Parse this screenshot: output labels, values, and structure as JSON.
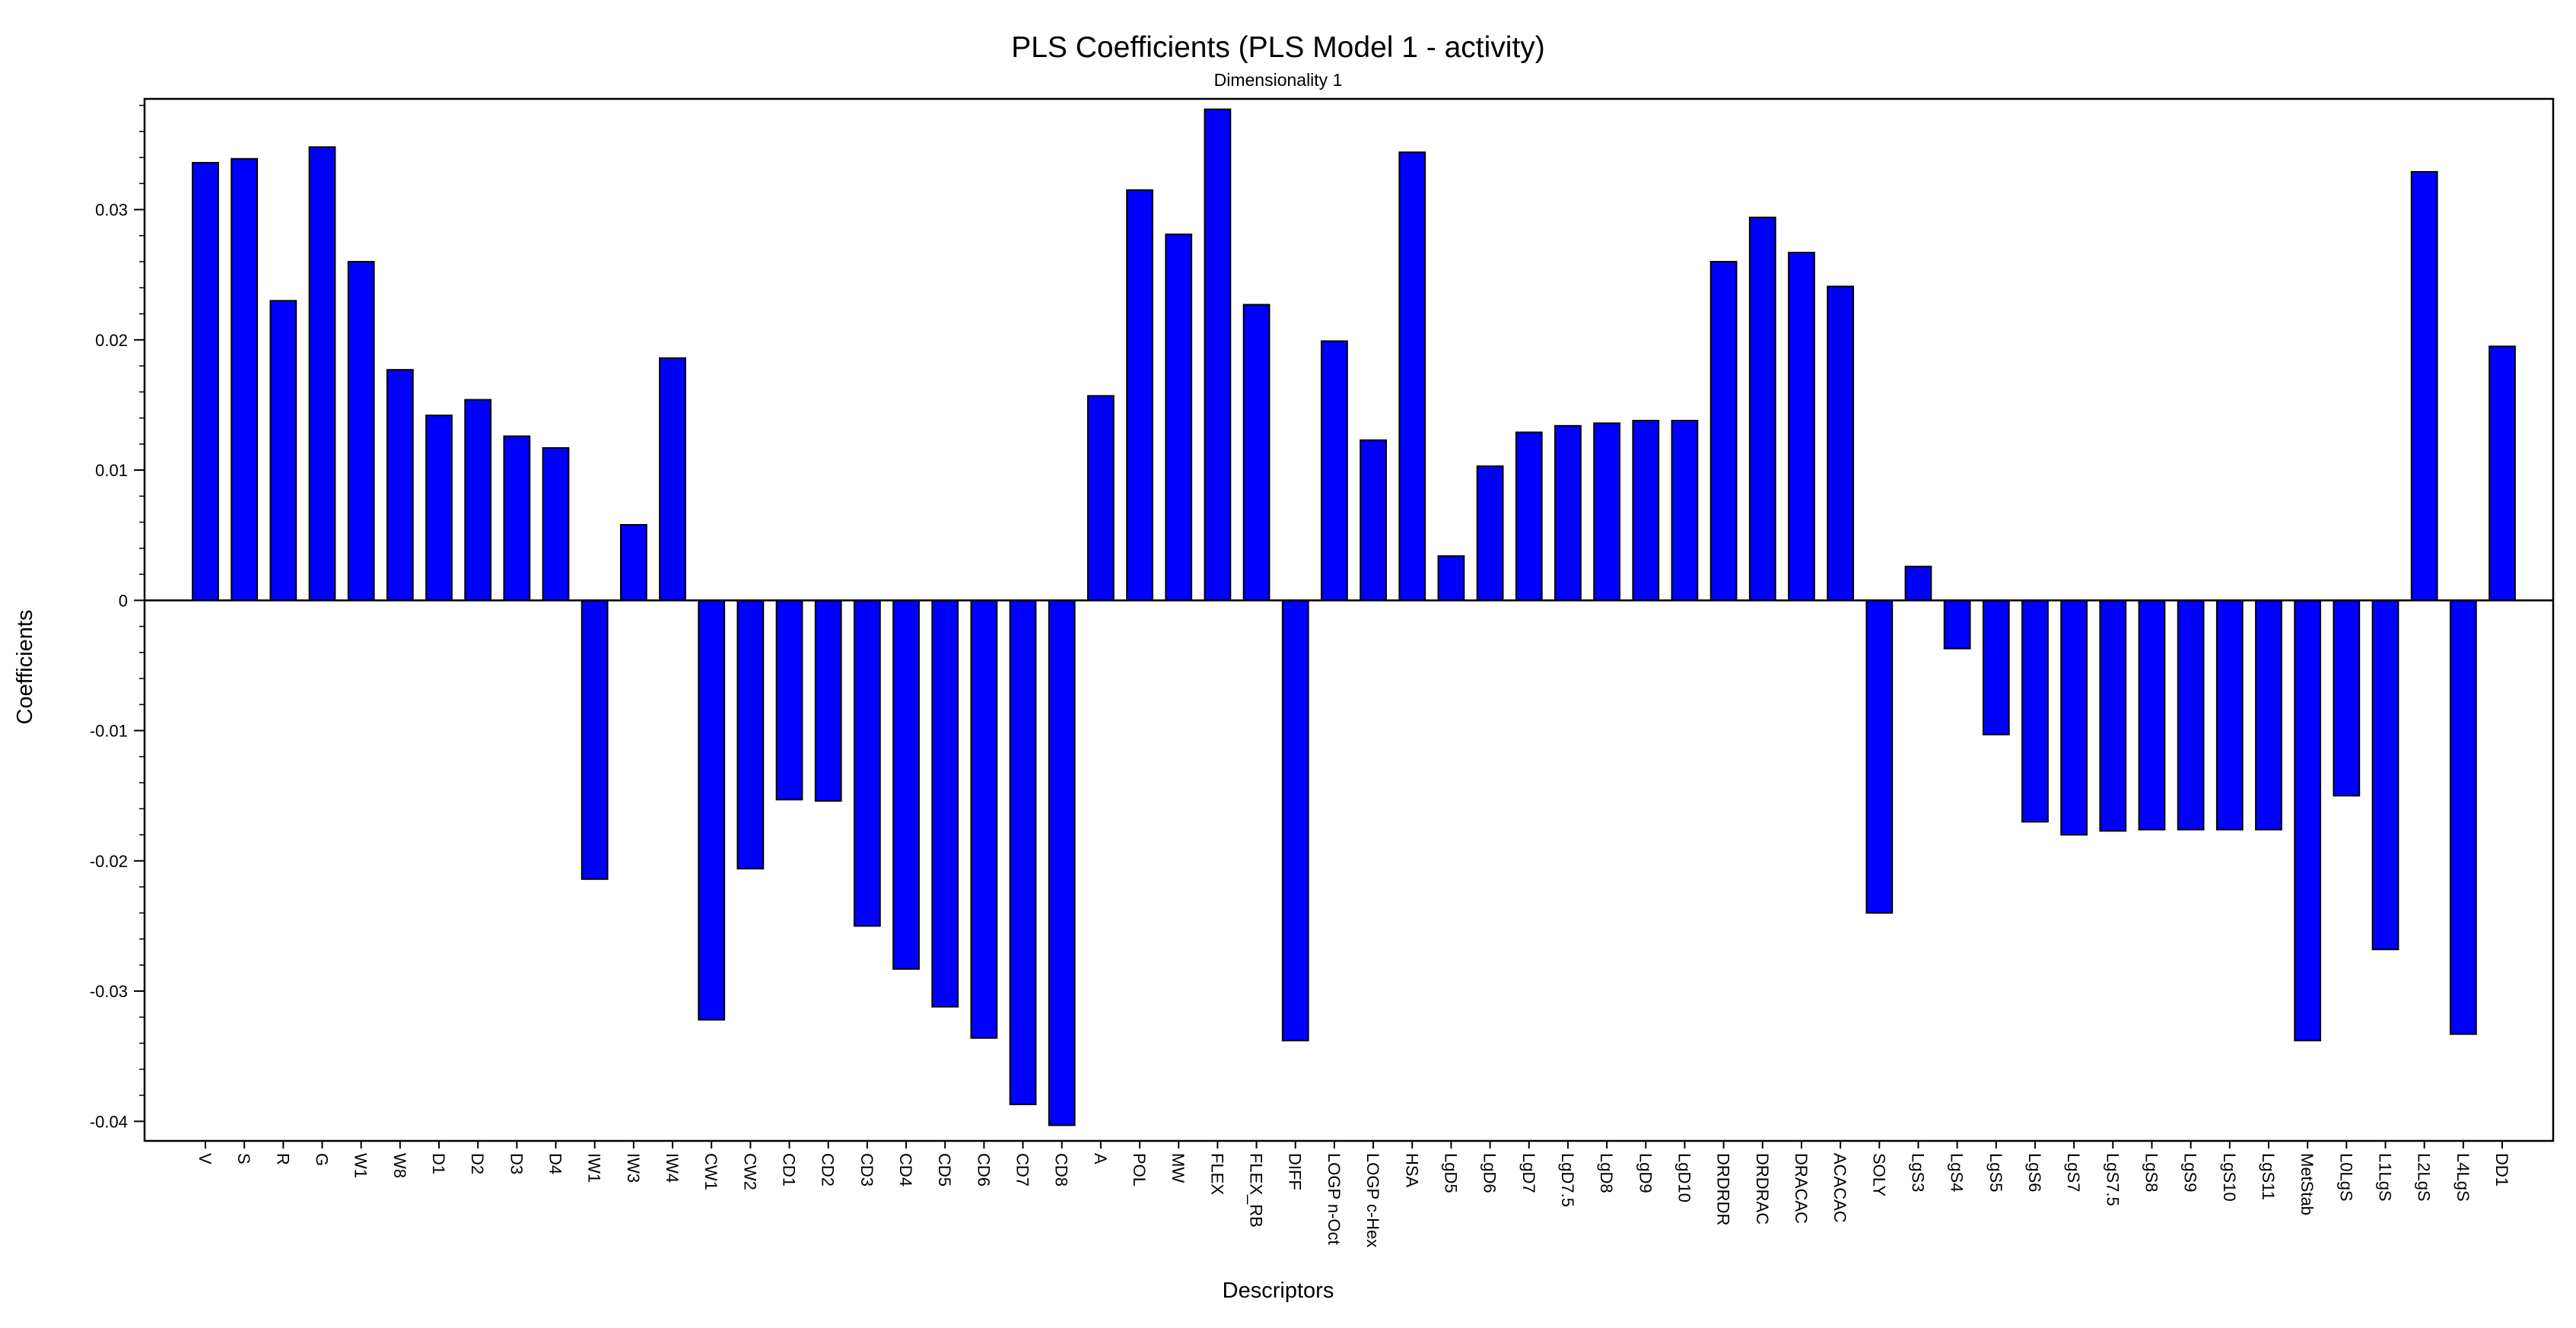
{
  "chart_data": {
    "type": "bar",
    "title": "PLS Coefficients (PLS Model 1 - activity)",
    "subtitle": "Dimensionality 1",
    "xlabel": "Descriptors",
    "ylabel": "Coefficients",
    "ylim": [
      -0.0415,
      0.0385
    ],
    "yticks": [
      -0.04,
      -0.03,
      -0.02,
      -0.01,
      0,
      0.01,
      0.02,
      0.03
    ],
    "ytick_labels": [
      "-0.04",
      "-0.03",
      "-0.02",
      "-0.01",
      "0",
      "0.01",
      "0.02",
      "0.03"
    ],
    "grid": false,
    "bar_color": "#0000ff",
    "categories": [
      "V",
      "S",
      "R",
      "G",
      "W1",
      "W8",
      "D1",
      "D2",
      "D3",
      "D4",
      "IW1",
      "IW3",
      "IW4",
      "CW1",
      "CW2",
      "CD1",
      "CD2",
      "CD3",
      "CD4",
      "CD5",
      "CD6",
      "CD7",
      "CD8",
      "A",
      "POL",
      "MW",
      "FLEX",
      "FLEX_RB",
      "DIFF",
      "LOGP n-Oct",
      "LOGP c-Hex",
      "HSA",
      "LgD5",
      "LgD6",
      "LgD7",
      "LgD7.5",
      "LgD8",
      "LgD9",
      "LgD10",
      "DRDRDR",
      "DRDRAC",
      "DRACAC",
      "ACACAC",
      "SOLY",
      "LgS3",
      "LgS4",
      "LgS5",
      "LgS6",
      "LgS7",
      "LgS7.5",
      "LgS8",
      "LgS9",
      "LgS10",
      "LgS11",
      "MetStab",
      "L0LgS",
      "L1LgS",
      "L2LgS",
      "L4LgS",
      "DD1"
    ],
    "values": [
      0.0336,
      0.0339,
      0.023,
      0.0348,
      0.026,
      0.0177,
      0.0142,
      0.0154,
      0.0126,
      0.0117,
      -0.0214,
      0.0058,
      0.0186,
      -0.0322,
      -0.0206,
      -0.0153,
      -0.0154,
      -0.025,
      -0.0283,
      -0.0312,
      -0.0336,
      -0.0387,
      -0.0403,
      0.0157,
      0.0315,
      0.0281,
      0.0377,
      0.0227,
      -0.0338,
      0.0199,
      0.0123,
      0.0344,
      0.0034,
      0.0103,
      0.0129,
      0.0134,
      0.0136,
      0.0138,
      0.0138,
      0.026,
      0.0294,
      0.0267,
      0.0241,
      -0.024,
      0.0026,
      -0.0037,
      -0.0103,
      -0.017,
      -0.018,
      -0.0177,
      -0.0176,
      -0.0176,
      -0.0176,
      -0.0176,
      -0.0338,
      -0.015,
      -0.0268,
      0.0329,
      -0.0333,
      0.0195
    ]
  }
}
